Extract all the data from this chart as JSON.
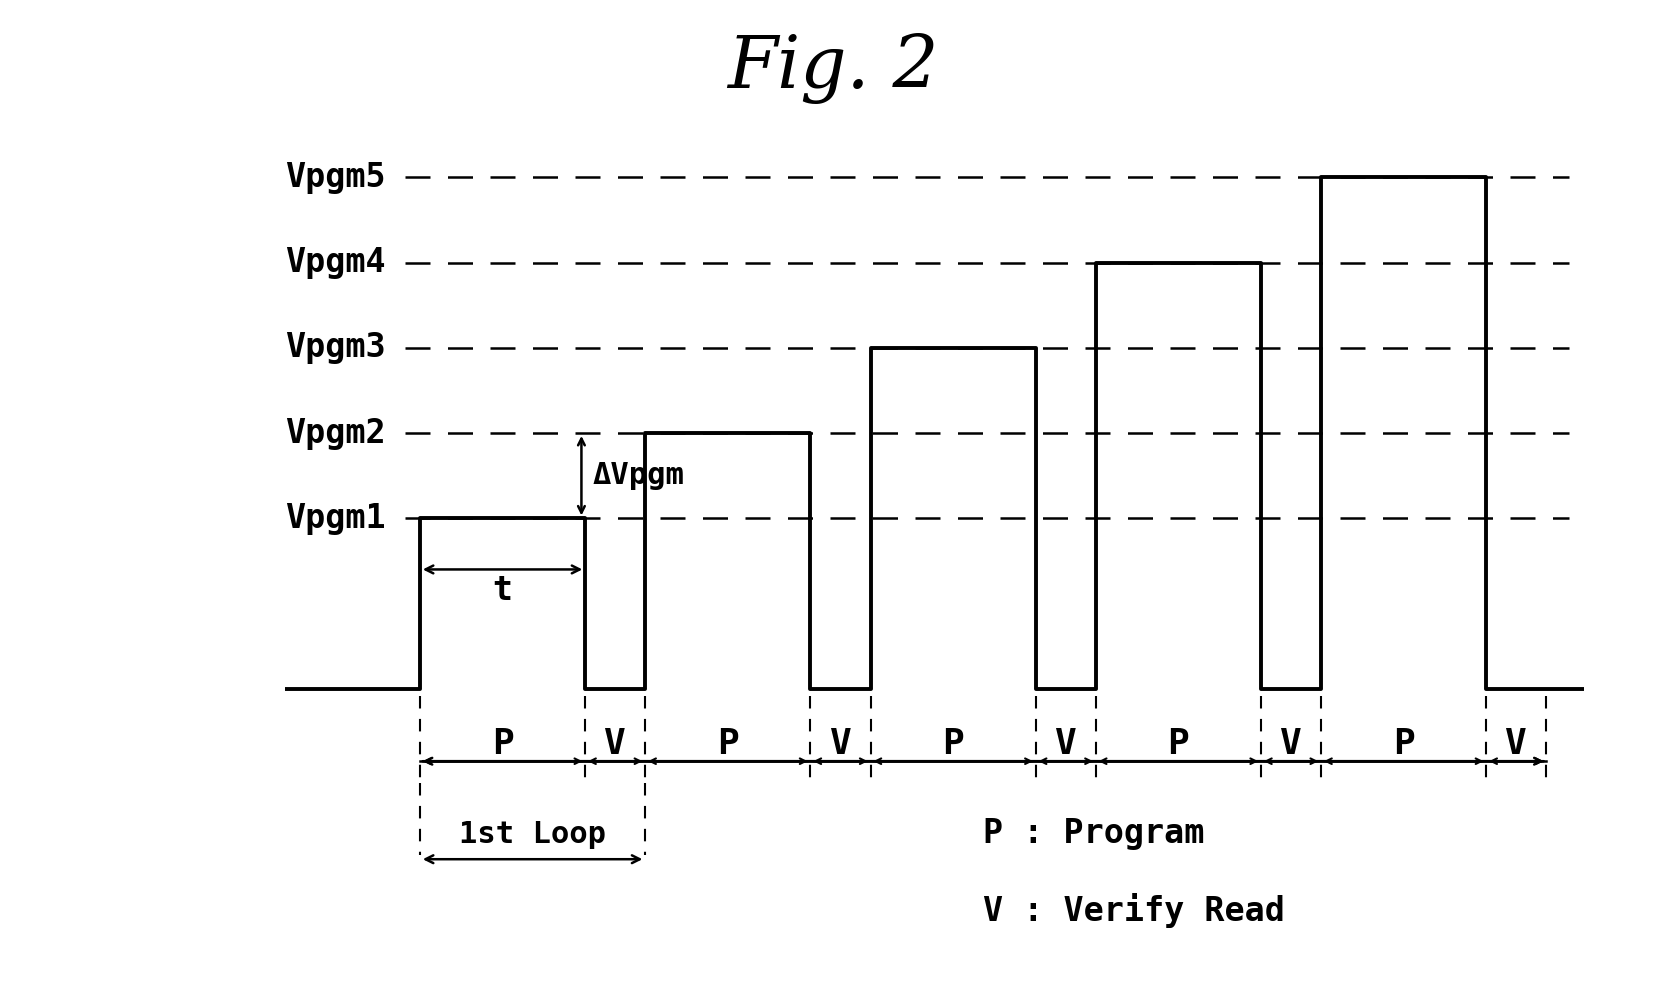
{
  "title": "Fig. 2",
  "background_color": "#ffffff",
  "title_fontsize": 52,
  "vpgm_labels": [
    "Vpgm1",
    "Vpgm2",
    "Vpgm3",
    "Vpgm4",
    "Vpgm5"
  ],
  "vpgm_levels": [
    2.0,
    3.0,
    4.0,
    5.0,
    6.0
  ],
  "pulses": [
    {
      "label": "P",
      "x_start": 2.0,
      "x_end": 4.2,
      "height": 2.0
    },
    {
      "label": "V",
      "x_start": 4.2,
      "x_end": 5.0,
      "height": 0.0
    },
    {
      "label": "P",
      "x_start": 5.0,
      "x_end": 7.2,
      "height": 3.0
    },
    {
      "label": "V",
      "x_start": 7.2,
      "x_end": 8.0,
      "height": 0.0
    },
    {
      "label": "P",
      "x_start": 8.0,
      "x_end": 10.2,
      "height": 4.0
    },
    {
      "label": "V",
      "x_start": 10.2,
      "x_end": 11.0,
      "height": 0.0
    },
    {
      "label": "P",
      "x_start": 11.0,
      "x_end": 13.2,
      "height": 5.0
    },
    {
      "label": "V",
      "x_start": 13.2,
      "x_end": 14.0,
      "height": 0.0
    },
    {
      "label": "P",
      "x_start": 14.0,
      "x_end": 16.2,
      "height": 6.0
    },
    {
      "label": "V",
      "x_start": 16.2,
      "x_end": 17.0,
      "height": 0.0
    }
  ],
  "baseline_y": 0.0,
  "waveform_start_x": 0.2,
  "waveform_end_x": 17.5,
  "x_min": -3.5,
  "x_max": 18.5,
  "y_min": -3.5,
  "y_max": 8.0,
  "label_fontsize": 24,
  "annotation_fontsize": 22,
  "pv_label_fontsize": 26,
  "legend_fontsize": 24,
  "line_color": "#000000",
  "dashed_color": "#000000"
}
